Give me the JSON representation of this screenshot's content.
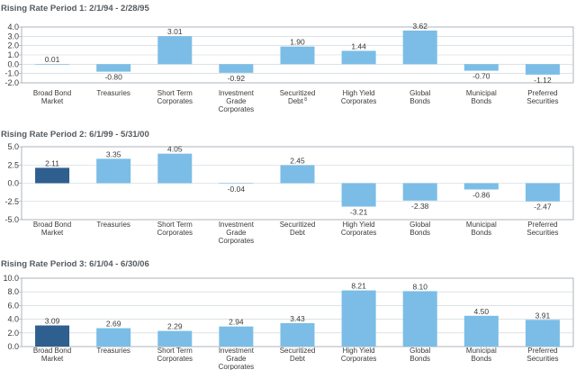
{
  "chart_data": [
    {
      "type": "bar",
      "title": "Rising Rate Period 1: 2/1/94 - 2/28/95",
      "categories": [
        [
          "Broad Bond",
          "Market"
        ],
        [
          "Treasuries"
        ],
        [
          "Short Term",
          "Corporates"
        ],
        [
          "Investment",
          "Grade",
          "Corporates"
        ],
        [
          "Securitized",
          "Debt"
        ],
        [
          "High Yield",
          "Corporates"
        ],
        [
          "Global",
          "Bonds"
        ],
        [
          "Municipal",
          "Bonds"
        ],
        [
          "Preferred",
          "Securities"
        ]
      ],
      "category_superscripts": [
        "",
        "",
        "",
        "",
        "8",
        "",
        "",
        "",
        ""
      ],
      "values": [
        0.01,
        -0.8,
        3.01,
        -0.92,
        1.9,
        1.44,
        3.62,
        -0.7,
        -1.12
      ],
      "value_labels": [
        "0.01",
        "-0.80",
        "3.01",
        "-0.92",
        "1.90",
        "1.44",
        "3.62",
        "-0.70",
        "-1.12"
      ],
      "yticks": [
        "4.0",
        "3.0",
        "2.0",
        "1.0",
        "0.0",
        "-1.0",
        "-2.0"
      ],
      "ylim": [
        -2.0,
        4.0
      ],
      "highlight_index": -1
    },
    {
      "type": "bar",
      "title": "Rising Rate Period 2: 6/1/99 - 5/31/00",
      "categories": [
        [
          "Broad Bond",
          "Market"
        ],
        [
          "Treasuries"
        ],
        [
          "Short Term",
          "Corporates"
        ],
        [
          "Investment",
          "Grade",
          "Corporates"
        ],
        [
          "Securitized",
          "Debt"
        ],
        [
          "High Yield",
          "Corporates"
        ],
        [
          "Global",
          "Bonds"
        ],
        [
          "Municipal",
          "Bonds"
        ],
        [
          "Preferred",
          "Securities"
        ]
      ],
      "category_superscripts": [
        "",
        "",
        "",
        "",
        "",
        "",
        "",
        "",
        ""
      ],
      "values": [
        2.11,
        3.35,
        4.05,
        -0.04,
        2.45,
        -3.21,
        -2.38,
        -0.86,
        -2.47
      ],
      "value_labels": [
        "2.11",
        "3.35",
        "4.05",
        "-0.04",
        "2.45",
        "-3.21",
        "-2.38",
        "-0.86",
        "-2.47"
      ],
      "yticks": [
        "5.0",
        "2.5",
        "0.0",
        "-2.5",
        "-5.0"
      ],
      "ylim": [
        -5.0,
        5.0
      ],
      "highlight_index": 0
    },
    {
      "type": "bar",
      "title": "Rising Rate Period 3: 6/1/04 - 6/30/06",
      "categories": [
        [
          "Broad Bond",
          "Market"
        ],
        [
          "Treasuries"
        ],
        [
          "Short Term",
          "Corporates"
        ],
        [
          "Investment",
          "Grade",
          "Corporates"
        ],
        [
          "Securitized",
          "Debt"
        ],
        [
          "High Yield",
          "Corporates"
        ],
        [
          "Global",
          "Bonds"
        ],
        [
          "Municipal",
          "Bonds"
        ],
        [
          "Preferred",
          "Securities"
        ]
      ],
      "category_superscripts": [
        "",
        "",
        "",
        "",
        "",
        "",
        "",
        "",
        ""
      ],
      "values": [
        3.09,
        2.69,
        2.29,
        2.94,
        3.43,
        8.21,
        8.1,
        4.5,
        3.91
      ],
      "value_labels": [
        "3.09",
        "2.69",
        "2.29",
        "2.94",
        "3.43",
        "8.21",
        "8.10",
        "4.50",
        "3.91"
      ],
      "yticks": [
        "10.0",
        "8.0",
        "6.0",
        "4.0",
        "2.0",
        "0.0"
      ],
      "ylim": [
        0.0,
        10.0
      ],
      "highlight_index": 0
    }
  ],
  "colors": {
    "bar": "#7bbde6",
    "bar_highlight": "#2f5f8e",
    "frame": "#9aa4ad",
    "grid": "#c8d0d6"
  }
}
